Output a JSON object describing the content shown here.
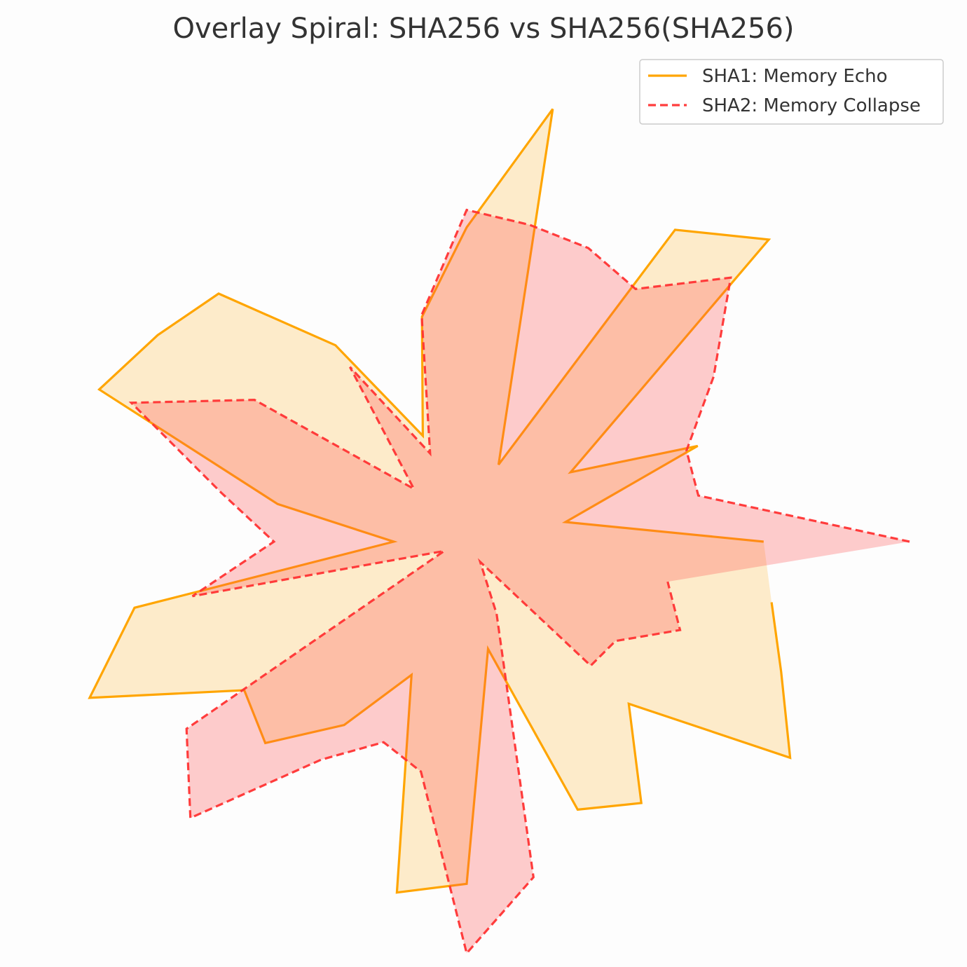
{
  "chart_data": {
    "type": "area",
    "subtype": "polar-radar",
    "title": "Overlay Spiral: SHA256 vs SHA256(SHA256)",
    "grid": false,
    "legend_position": "top-right",
    "angle_count": 32,
    "radial_lim": [
      0,
      255
    ],
    "series": [
      {
        "name": "SHA1: Memory Echo",
        "color": "#FFA500",
        "fill": "#FFA500",
        "fill_opacity": 0.2,
        "line_style": "solid",
        "values": [
          171,
          58,
          144,
          72,
          246,
          216,
          48,
          254,
          181,
          132,
          66,
          136,
          202,
          214,
          229,
          111,
          42,
          195,
          235,
          154,
          164,
          127,
          83,
          206,
          197,
          63,
          167,
          181,
          132,
          224,
          196,
          179
        ]
      },
      {
        "name": "SHA2: Memory Collapse",
        "color": "#FF3333",
        "fill": "#FF4D4D",
        "fill_opacity": 0.28,
        "line_style": "dashed",
        "values": [
          255,
          136,
          137,
          171,
          215,
          175,
          183,
          186,
          191,
          133,
          55,
          121,
          43,
          147,
          209,
          144,
          111,
          161,
          14,
          194,
          225,
          151,
          125,
          135,
          237,
          197,
          45,
          14,
          101,
          103,
          133,
          118
        ]
      }
    ]
  }
}
